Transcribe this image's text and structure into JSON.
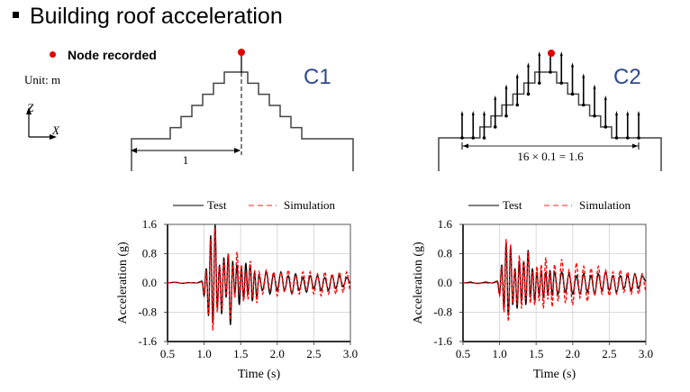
{
  "slide": {
    "title": "Building roof acceleration",
    "legend_node_label": "Node recorded",
    "unit_label": "Unit: m",
    "axis_z": "Z",
    "axis_x": "X",
    "accent_red": "#e00000",
    "label_blue": "#2e4a8a"
  },
  "diagrams": {
    "c1": {
      "label": "C1",
      "dimension_label": "1",
      "steps": 6
    },
    "c2": {
      "label": "C2",
      "dimension_label": "16 × 0.1 = 1.6",
      "steps": 6,
      "columns": 17
    }
  },
  "chart_data": [
    {
      "type": "line",
      "id": "C1",
      "title": "",
      "xlabel": "Time (s)",
      "ylabel": "Acceleration (g)",
      "xlim": [
        0.5,
        3.0
      ],
      "ylim": [
        -1.6,
        1.6
      ],
      "xticks": [
        "0.5",
        "1.0",
        "1.5",
        "2.0",
        "2.5",
        "3.0"
      ],
      "yticks": [
        "1.6",
        "0.8",
        "0.0",
        "-0.8",
        "-1.6"
      ],
      "grid": true,
      "legend": "top",
      "series": [
        {
          "name": "Test",
          "color": "#000000",
          "style": "solid",
          "x": [
            0.5,
            0.6,
            0.7,
            0.8,
            0.9,
            0.97,
            1.0,
            1.03,
            1.06,
            1.09,
            1.12,
            1.15,
            1.18,
            1.21,
            1.24,
            1.27,
            1.3,
            1.33,
            1.36,
            1.39,
            1.42,
            1.45,
            1.48,
            1.51,
            1.54,
            1.57,
            1.6,
            1.63,
            1.66,
            1.69,
            1.72,
            1.75,
            1.8,
            1.85,
            1.9,
            1.95,
            2.0,
            2.05,
            2.1,
            2.15,
            2.2,
            2.25,
            2.3,
            2.35,
            2.4,
            2.45,
            2.5,
            2.55,
            2.6,
            2.65,
            2.7,
            2.75,
            2.8,
            2.85,
            2.9,
            2.95,
            3.0
          ],
          "y": [
            0.0,
            0.02,
            -0.01,
            0.01,
            0.0,
            0.05,
            -0.35,
            0.4,
            -0.9,
            1.3,
            -1.1,
            1.6,
            -0.7,
            0.5,
            -0.85,
            0.7,
            -0.4,
            0.8,
            -1.15,
            0.6,
            -0.3,
            0.5,
            -0.6,
            0.4,
            -0.4,
            0.55,
            -0.3,
            0.5,
            -0.5,
            0.3,
            -0.4,
            0.2,
            -0.2,
            0.3,
            -0.3,
            0.25,
            -0.2,
            0.3,
            -0.2,
            0.2,
            -0.3,
            0.25,
            -0.2,
            0.15,
            -0.25,
            0.2,
            -0.15,
            0.2,
            -0.2,
            0.15,
            -0.2,
            0.2,
            -0.15,
            0.2,
            -0.1,
            0.15,
            0.0
          ]
        },
        {
          "name": "Simulation",
          "color": "#ff0000",
          "style": "dashed",
          "x": [
            0.5,
            0.6,
            0.7,
            0.8,
            0.9,
            0.97,
            1.0,
            1.03,
            1.06,
            1.09,
            1.12,
            1.15,
            1.18,
            1.21,
            1.24,
            1.27,
            1.3,
            1.33,
            1.36,
            1.39,
            1.42,
            1.45,
            1.48,
            1.51,
            1.54,
            1.57,
            1.6,
            1.63,
            1.66,
            1.69,
            1.72,
            1.75,
            1.8,
            1.85,
            1.9,
            1.95,
            2.0,
            2.05,
            2.1,
            2.15,
            2.2,
            2.25,
            2.3,
            2.35,
            2.4,
            2.45,
            2.5,
            2.55,
            2.6,
            2.65,
            2.7,
            2.75,
            2.8,
            2.85,
            2.9,
            2.95,
            3.0
          ],
          "y": [
            0.0,
            0.02,
            -0.01,
            0.01,
            0.0,
            0.03,
            -0.3,
            0.35,
            -0.85,
            1.2,
            -1.3,
            1.5,
            -0.8,
            0.45,
            -0.75,
            0.6,
            -0.35,
            0.8,
            -1.0,
            0.5,
            -0.4,
            0.85,
            -0.3,
            0.5,
            -0.5,
            0.3,
            -0.45,
            0.6,
            -0.4,
            0.35,
            -0.55,
            0.3,
            -0.3,
            0.35,
            -0.2,
            0.3,
            -0.35,
            0.3,
            -0.25,
            0.35,
            -0.3,
            0.2,
            -0.3,
            0.3,
            -0.2,
            0.3,
            -0.3,
            0.25,
            -0.35,
            0.3,
            -0.3,
            0.25,
            -0.3,
            0.3,
            -0.25,
            0.3,
            -0.2
          ]
        }
      ]
    },
    {
      "type": "line",
      "id": "C2",
      "title": "",
      "xlabel": "Time (s)",
      "ylabel": "Acceleration (g)",
      "xlim": [
        0.5,
        3.0
      ],
      "ylim": [
        -1.6,
        1.6
      ],
      "xticks": [
        "0.5",
        "1.0",
        "1.5",
        "2.0",
        "2.5",
        "3.0"
      ],
      "yticks": [
        "1.6",
        "0.8",
        "0.0",
        "-0.8",
        "-1.6"
      ],
      "grid": true,
      "legend": "top",
      "series": [
        {
          "name": "Test",
          "color": "#000000",
          "style": "solid",
          "x": [
            0.5,
            0.6,
            0.7,
            0.8,
            0.9,
            0.97,
            1.0,
            1.03,
            1.06,
            1.09,
            1.12,
            1.15,
            1.18,
            1.21,
            1.24,
            1.27,
            1.3,
            1.33,
            1.36,
            1.39,
            1.42,
            1.45,
            1.48,
            1.51,
            1.54,
            1.57,
            1.6,
            1.63,
            1.66,
            1.69,
            1.72,
            1.75,
            1.8,
            1.85,
            1.9,
            1.95,
            2.0,
            2.05,
            2.1,
            2.15,
            2.2,
            2.25,
            2.3,
            2.35,
            2.4,
            2.45,
            2.5,
            2.55,
            2.6,
            2.65,
            2.7,
            2.75,
            2.8,
            2.85,
            2.9,
            2.95,
            3.0
          ],
          "y": [
            0.0,
            0.01,
            -0.01,
            0.01,
            0.0,
            0.05,
            -0.3,
            0.5,
            -0.7,
            1.1,
            -0.9,
            1.0,
            -0.6,
            0.4,
            -0.7,
            0.6,
            -0.5,
            0.6,
            -0.6,
            0.9,
            -0.4,
            0.4,
            -0.5,
            0.3,
            -0.3,
            0.35,
            -0.4,
            0.3,
            -0.3,
            0.35,
            -0.35,
            0.3,
            -0.3,
            0.3,
            -0.25,
            0.25,
            -0.3,
            0.2,
            -0.3,
            0.25,
            -0.25,
            0.2,
            -0.3,
            0.25,
            -0.2,
            0.3,
            -0.2,
            0.2,
            -0.25,
            0.2,
            -0.15,
            0.2,
            -0.2,
            0.25,
            -0.15,
            0.2,
            0.05
          ]
        },
        {
          "name": "Simulation",
          "color": "#ff0000",
          "style": "dashed",
          "x": [
            0.5,
            0.6,
            0.7,
            0.8,
            0.9,
            0.97,
            1.0,
            1.03,
            1.06,
            1.09,
            1.12,
            1.15,
            1.18,
            1.21,
            1.24,
            1.27,
            1.3,
            1.33,
            1.36,
            1.39,
            1.42,
            1.45,
            1.48,
            1.51,
            1.54,
            1.57,
            1.6,
            1.63,
            1.66,
            1.69,
            1.72,
            1.75,
            1.8,
            1.85,
            1.9,
            1.95,
            2.0,
            2.05,
            2.1,
            2.15,
            2.2,
            2.25,
            2.3,
            2.35,
            2.4,
            2.45,
            2.5,
            2.55,
            2.6,
            2.65,
            2.7,
            2.75,
            2.8,
            2.85,
            2.9,
            2.95,
            3.0
          ],
          "y": [
            0.0,
            0.03,
            -0.02,
            0.03,
            0.0,
            0.03,
            -0.35,
            0.45,
            -0.8,
            1.2,
            -1.05,
            1.05,
            -0.55,
            0.35,
            -0.6,
            0.75,
            -0.7,
            0.6,
            -0.45,
            0.85,
            -0.55,
            0.3,
            -0.6,
            0.45,
            -0.5,
            0.5,
            -0.7,
            0.7,
            -0.45,
            0.3,
            -0.65,
            0.5,
            -0.5,
            0.65,
            -0.55,
            0.35,
            -0.6,
            0.55,
            -0.4,
            0.45,
            -0.5,
            0.4,
            -0.35,
            0.45,
            -0.3,
            0.35,
            -0.35,
            0.3,
            -0.3,
            0.35,
            -0.25,
            0.3,
            -0.3,
            0.25,
            -0.3,
            0.25,
            -0.2
          ]
        }
      ]
    }
  ]
}
